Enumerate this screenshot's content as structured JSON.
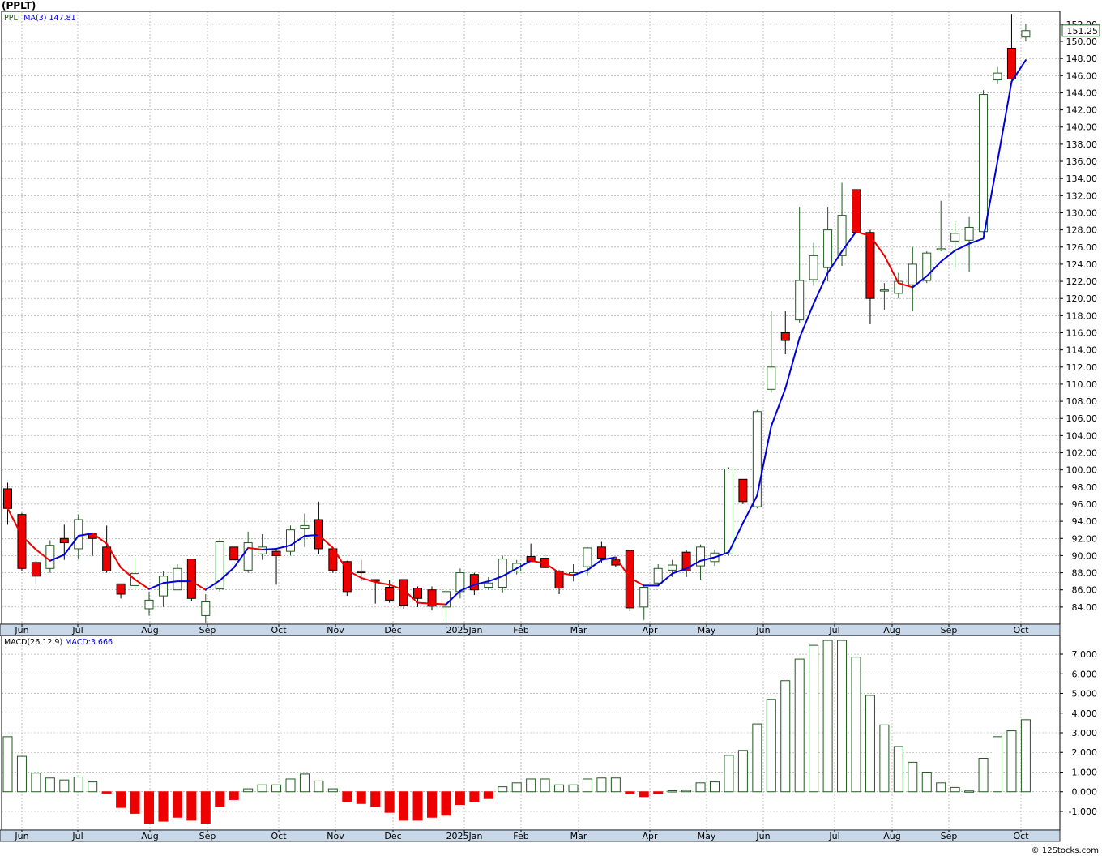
{
  "page": {
    "title": "(PPLT)",
    "footer": "© 12Stocks.com"
  },
  "colors": {
    "up": "#ffffff",
    "up_border": "#1f5a1f",
    "down": "#ee0000",
    "ma_up": "#0000dd",
    "ma_down": "#ee0000",
    "macd_pos": "#1f5a1f",
    "macd_neg": "#ee0000",
    "axis_bar": "#c8d8e8",
    "grid": "#999999"
  },
  "chart_data": [
    {
      "type": "candlestick",
      "title": "PPLT",
      "indicator_label": "MA(3)",
      "indicator_value": "147.81",
      "last_price": "151.25",
      "ylim": [
        82,
        153.5
      ],
      "y_ticks": [
        "84.00",
        "86.00",
        "88.00",
        "90.00",
        "92.00",
        "94.00",
        "96.00",
        "98.00",
        "100.00",
        "102.00",
        "104.00",
        "106.00",
        "108.00",
        "110.00",
        "112.00",
        "114.00",
        "116.00",
        "118.00",
        "120.00",
        "122.00",
        "124.00",
        "126.00",
        "128.00",
        "130.00",
        "132.00",
        "134.00",
        "136.00",
        "138.00",
        "140.00",
        "142.00",
        "144.00",
        "146.00",
        "148.00",
        "150.00",
        "152.00"
      ],
      "x_labels": [
        "Jun",
        "Jul",
        "Aug",
        "Sep",
        "Oct",
        "Nov",
        "Dec",
        "2025Jan",
        "Feb",
        "Mar",
        "Apr",
        "May",
        "Jun",
        "Jul",
        "Aug",
        "Sep",
        "Oct"
      ],
      "grid": true,
      "candles": [
        {
          "o": 97.8,
          "h": 98.5,
          "l": 93.6,
          "c": 95.5
        },
        {
          "o": 94.8,
          "h": 95.0,
          "l": 88.2,
          "c": 88.5
        },
        {
          "o": 89.2,
          "h": 89.6,
          "l": 86.6,
          "c": 87.6
        },
        {
          "o": 88.5,
          "h": 91.8,
          "l": 88.0,
          "c": 91.2
        },
        {
          "o": 92.0,
          "h": 93.6,
          "l": 89.5,
          "c": 91.5
        },
        {
          "o": 90.8,
          "h": 94.8,
          "l": 89.6,
          "c": 94.2
        },
        {
          "o": 92.6,
          "h": 92.6,
          "l": 90.0,
          "c": 92.0
        },
        {
          "o": 91.0,
          "h": 93.5,
          "l": 88.0,
          "c": 88.2
        },
        {
          "o": 86.7,
          "h": 86.7,
          "l": 85.0,
          "c": 85.5
        },
        {
          "o": 86.5,
          "h": 89.8,
          "l": 86.0,
          "c": 87.9
        },
        {
          "o": 83.8,
          "h": 85.8,
          "l": 83.0,
          "c": 84.8
        },
        {
          "o": 85.3,
          "h": 88.2,
          "l": 84.0,
          "c": 87.6
        },
        {
          "o": 86.0,
          "h": 89.0,
          "l": 86.0,
          "c": 88.5
        },
        {
          "o": 89.6,
          "h": 89.6,
          "l": 84.7,
          "c": 85.0
        },
        {
          "o": 83.0,
          "h": 85.5,
          "l": 82.2,
          "c": 84.6
        },
        {
          "o": 86.1,
          "h": 92.0,
          "l": 85.8,
          "c": 91.6
        },
        {
          "o": 91.0,
          "h": 91.0,
          "l": 89.5,
          "c": 89.5
        },
        {
          "o": 88.3,
          "h": 92.8,
          "l": 88.0,
          "c": 91.5
        },
        {
          "o": 90.2,
          "h": 92.5,
          "l": 89.5,
          "c": 91.0
        },
        {
          "o": 90.5,
          "h": 90.6,
          "l": 86.6,
          "c": 90.0
        },
        {
          "o": 90.5,
          "h": 93.5,
          "l": 90.0,
          "c": 93.0
        },
        {
          "o": 93.2,
          "h": 94.9,
          "l": 91.0,
          "c": 93.5
        },
        {
          "o": 94.2,
          "h": 96.3,
          "l": 90.2,
          "c": 90.8
        },
        {
          "o": 90.8,
          "h": 91.0,
          "l": 88.0,
          "c": 88.3
        },
        {
          "o": 89.3,
          "h": 89.4,
          "l": 85.3,
          "c": 85.8
        },
        {
          "o": 88.2,
          "h": 89.5,
          "l": 87.0,
          "c": 88.0
        },
        {
          "o": 87.2,
          "h": 87.2,
          "l": 84.4,
          "c": 87.0
        },
        {
          "o": 86.3,
          "h": 87.2,
          "l": 84.5,
          "c": 84.8
        },
        {
          "o": 87.2,
          "h": 87.2,
          "l": 83.8,
          "c": 84.2
        },
        {
          "o": 86.2,
          "h": 86.4,
          "l": 84.0,
          "c": 85.0
        },
        {
          "o": 86.0,
          "h": 86.4,
          "l": 83.6,
          "c": 84.1
        },
        {
          "o": 84.0,
          "h": 86.2,
          "l": 82.4,
          "c": 85.8
        },
        {
          "o": 85.8,
          "h": 88.5,
          "l": 85.0,
          "c": 88.0
        },
        {
          "o": 87.8,
          "h": 88.0,
          "l": 85.4,
          "c": 86.0
        },
        {
          "o": 86.3,
          "h": 87.5,
          "l": 86.0,
          "c": 86.8
        },
        {
          "o": 86.3,
          "h": 90.0,
          "l": 85.7,
          "c": 89.6
        },
        {
          "o": 88.2,
          "h": 89.5,
          "l": 87.8,
          "c": 89.1
        },
        {
          "o": 89.9,
          "h": 91.4,
          "l": 89.3,
          "c": 89.3
        },
        {
          "o": 89.7,
          "h": 90.2,
          "l": 88.6,
          "c": 88.6
        },
        {
          "o": 88.2,
          "h": 88.3,
          "l": 85.5,
          "c": 86.2
        },
        {
          "o": 87.8,
          "h": 89.0,
          "l": 87.0,
          "c": 88.0
        },
        {
          "o": 88.7,
          "h": 91.0,
          "l": 87.7,
          "c": 90.9
        },
        {
          "o": 91.0,
          "h": 91.6,
          "l": 89.2,
          "c": 89.7
        },
        {
          "o": 89.5,
          "h": 89.6,
          "l": 88.7,
          "c": 88.9
        },
        {
          "o": 90.6,
          "h": 90.7,
          "l": 83.5,
          "c": 83.9
        },
        {
          "o": 84.0,
          "h": 86.5,
          "l": 82.5,
          "c": 86.3
        },
        {
          "o": 86.8,
          "h": 89.0,
          "l": 86.5,
          "c": 88.5
        },
        {
          "o": 88.3,
          "h": 89.5,
          "l": 87.5,
          "c": 88.9
        },
        {
          "o": 90.4,
          "h": 90.6,
          "l": 87.5,
          "c": 88.2
        },
        {
          "o": 88.8,
          "h": 91.3,
          "l": 87.2,
          "c": 91.0
        },
        {
          "o": 89.3,
          "h": 90.7,
          "l": 88.8,
          "c": 90.3
        },
        {
          "o": 90.2,
          "h": 100.3,
          "l": 90.0,
          "c": 100.1
        },
        {
          "o": 98.9,
          "h": 98.9,
          "l": 96.0,
          "c": 96.3
        },
        {
          "o": 95.7,
          "h": 107.0,
          "l": 95.5,
          "c": 106.8
        },
        {
          "o": 109.4,
          "h": 118.5,
          "l": 109.0,
          "c": 112.0
        },
        {
          "o": 116.0,
          "h": 118.5,
          "l": 113.5,
          "c": 115.1
        },
        {
          "o": 117.5,
          "h": 130.7,
          "l": 117.2,
          "c": 122.1
        },
        {
          "o": 122.2,
          "h": 126.5,
          "l": 121.5,
          "c": 125.0
        },
        {
          "o": 123.6,
          "h": 130.7,
          "l": 122.0,
          "c": 128.0
        },
        {
          "o": 125.0,
          "h": 133.5,
          "l": 123.8,
          "c": 129.7
        },
        {
          "o": 132.7,
          "h": 132.8,
          "l": 126.0,
          "c": 127.7
        },
        {
          "o": 127.7,
          "h": 128.0,
          "l": 117.0,
          "c": 120.0
        },
        {
          "o": 121.0,
          "h": 121.8,
          "l": 118.7,
          "c": 121.0
        },
        {
          "o": 120.6,
          "h": 123.0,
          "l": 120.0,
          "c": 122.0
        },
        {
          "o": 121.6,
          "h": 126.0,
          "l": 118.5,
          "c": 124.0
        },
        {
          "o": 122.1,
          "h": 125.5,
          "l": 121.8,
          "c": 125.3
        },
        {
          "o": 125.8,
          "h": 131.4,
          "l": 125.5,
          "c": 125.8
        },
        {
          "o": 126.7,
          "h": 129.0,
          "l": 123.5,
          "c": 127.6
        },
        {
          "o": 126.8,
          "h": 129.5,
          "l": 123.1,
          "c": 128.3
        },
        {
          "o": 127.8,
          "h": 144.3,
          "l": 127.5,
          "c": 143.8
        },
        {
          "o": 145.5,
          "h": 147.0,
          "l": 145.0,
          "c": 146.3
        },
        {
          "o": 149.2,
          "h": 153.2,
          "l": 145.5,
          "c": 145.6
        },
        {
          "o": 150.5,
          "h": 152.0,
          "l": 150.0,
          "c": 151.25
        }
      ],
      "ma3": [
        95.5,
        92.3,
        90.7,
        89.4,
        90.1,
        92.3,
        92.6,
        91.4,
        88.6,
        87.2,
        86.1,
        86.8,
        87.0,
        87.0,
        86.0,
        87.1,
        88.6,
        90.9,
        90.7,
        90.8,
        91.2,
        92.3,
        92.4,
        90.9,
        88.3,
        87.4,
        86.9,
        86.6,
        86.0,
        84.5,
        84.4,
        84.3,
        85.9,
        86.6,
        87.0,
        87.6,
        88.5,
        89.4,
        89.1,
        88.0,
        87.7,
        88.3,
        89.5,
        89.8,
        87.4,
        86.5,
        86.5,
        87.9,
        88.5,
        89.4,
        89.8,
        90.4,
        93.8,
        97.0,
        105.1,
        109.5,
        115.4,
        119.4,
        123.0,
        125.5,
        127.8,
        127.3,
        125.0,
        121.8,
        121.3,
        122.6,
        124.3,
        125.6,
        126.4,
        127.0,
        136.0,
        145.3,
        147.81
      ]
    },
    {
      "type": "bar",
      "title": "MACD(26,12,9)",
      "indicator_label": "MACD:",
      "indicator_value": "3.666",
      "ylim": [
        -1.95,
        7.95
      ],
      "y_ticks": [
        "-1.000",
        "0.000",
        "1.000",
        "2.000",
        "3.000",
        "4.000",
        "5.000",
        "6.000",
        "7.000"
      ],
      "x_labels": [
        "Jun",
        "Jul",
        "Aug",
        "Sep",
        "Oct",
        "Nov",
        "Dec",
        "2025Jan",
        "Feb",
        "Mar",
        "Apr",
        "May",
        "Jun",
        "Jul",
        "Aug",
        "Sep",
        "Oct"
      ],
      "grid": true,
      "values": [
        2.8,
        1.8,
        0.95,
        0.7,
        0.6,
        0.75,
        0.5,
        -0.07,
        -0.8,
        -1.1,
        -1.6,
        -1.5,
        -1.3,
        -1.45,
        -1.6,
        -0.75,
        -0.4,
        0.15,
        0.35,
        0.35,
        0.65,
        0.9,
        0.55,
        0.15,
        -0.5,
        -0.6,
        -0.75,
        -1.05,
        -1.45,
        -1.45,
        -1.3,
        -1.2,
        -0.65,
        -0.5,
        -0.35,
        0.25,
        0.45,
        0.65,
        0.65,
        0.35,
        0.35,
        0.65,
        0.7,
        0.7,
        -0.08,
        -0.25,
        -0.08,
        0.05,
        0.07,
        0.45,
        0.5,
        1.85,
        2.1,
        3.45,
        4.7,
        5.65,
        6.75,
        7.45,
        7.7,
        7.7,
        6.85,
        4.9,
        3.4,
        2.3,
        1.5,
        1.0,
        0.45,
        0.22,
        0.04,
        1.7,
        2.8,
        3.1,
        3.666
      ]
    }
  ]
}
